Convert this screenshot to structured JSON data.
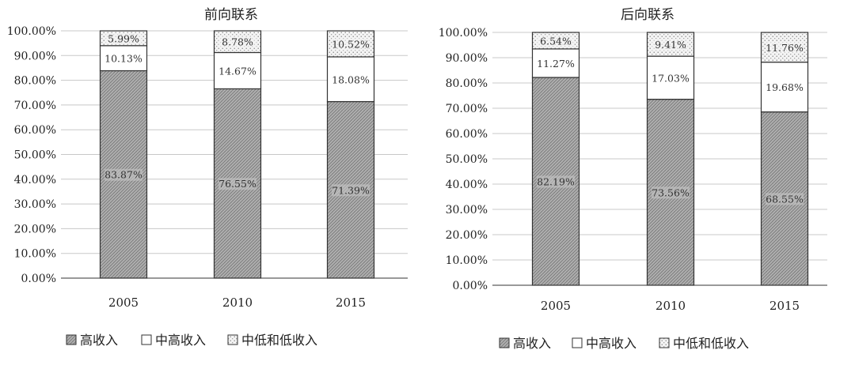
{
  "colors": {
    "high": "#a9a9a9",
    "upper_middle": "#ffffff",
    "lower": "#ececec",
    "grid": "#c8c8c8",
    "border": "#333333"
  },
  "legend_items": [
    "高收入",
    "中高收入",
    "中低和低收入"
  ],
  "chart_data": [
    {
      "type": "bar",
      "stacked": true,
      "percent": true,
      "title": "前向联系",
      "categories": [
        "2005",
        "2010",
        "2015"
      ],
      "ylim": [
        0,
        100
      ],
      "yticks": [
        "0.00%",
        "10.00%",
        "20.00%",
        "30.00%",
        "40.00%",
        "50.00%",
        "60.00%",
        "70.00%",
        "80.00%",
        "90.00%",
        "100.00%"
      ],
      "grid": true,
      "legend_position": "bottom",
      "series": [
        {
          "name": "高收入",
          "values": [
            83.87,
            76.55,
            71.39
          ],
          "labels": [
            "83.87%",
            "76.55%",
            "71.39%"
          ]
        },
        {
          "name": "中高收入",
          "values": [
            10.13,
            14.67,
            18.08
          ],
          "labels": [
            "10.13%",
            "14.67%",
            "18.08%"
          ]
        },
        {
          "name": "中低和低收入",
          "values": [
            5.99,
            8.78,
            10.52
          ],
          "labels": [
            "5.99%",
            "8.78%",
            "10.52%"
          ]
        }
      ]
    },
    {
      "type": "bar",
      "stacked": true,
      "percent": true,
      "title": "后向联系",
      "categories": [
        "2005",
        "2010",
        "2015"
      ],
      "ylim": [
        0,
        100
      ],
      "yticks": [
        "0.00%",
        "10.00%",
        "20.00%",
        "30.00%",
        "40.00%",
        "50.00%",
        "60.00%",
        "70.00%",
        "80.00%",
        "90.00%",
        "100.00%"
      ],
      "grid": true,
      "legend_position": "bottom",
      "series": [
        {
          "name": "高收入",
          "values": [
            82.19,
            73.56,
            68.55
          ],
          "labels": [
            "82.19%",
            "73.56%",
            "68.55%"
          ]
        },
        {
          "name": "中高收入",
          "values": [
            11.27,
            17.03,
            19.68
          ],
          "labels": [
            "11.27%",
            "17.03%",
            "19.68%"
          ]
        },
        {
          "name": "中低和低收入",
          "values": [
            6.54,
            9.41,
            11.76
          ],
          "labels": [
            "6.54%",
            "9.41%",
            "11.76%"
          ]
        }
      ]
    }
  ]
}
